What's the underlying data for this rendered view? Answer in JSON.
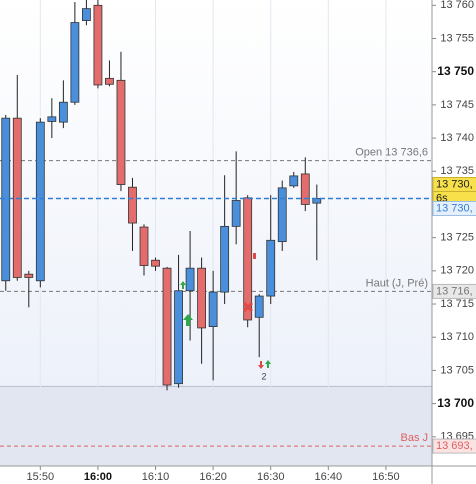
{
  "chart_data": {
    "type": "candlestick",
    "x": [
      "15:44",
      "15:46",
      "15:48",
      "15:50",
      "15:52",
      "15:54",
      "15:56",
      "15:58",
      "16:00",
      "16:02",
      "16:04",
      "16:06",
      "16:08",
      "16:10",
      "16:12",
      "16:14",
      "16:16",
      "16:18",
      "16:20",
      "16:22",
      "16:24",
      "16:26",
      "16:28",
      "16:30",
      "16:32",
      "16:34",
      "16:36",
      "16:38"
    ],
    "open": [
      13718.5,
      13743,
      13719.5,
      13718.5,
      13742.5,
      13742.4,
      13745.4,
      13757.7,
      13760,
      13749,
      13748.7,
      13732.6,
      13726.6,
      13721.6,
      13720.4,
      13703,
      13717,
      13720.4,
      13711.6,
      13716.8,
      13726.7,
      13731,
      13713,
      13716.2,
      13724.4,
      13732.8,
      13734.6,
      13730.2
    ],
    "high": [
      13743.5,
      13749.5,
      13720,
      13743,
      13746,
      13748.7,
      13760.5,
      13762,
      13761,
      13751.7,
      13753,
      13734,
      13727,
      13722,
      13720.6,
      13722.4,
      13726,
      13722,
      13720,
      13734.4,
      13738,
      13731.4,
      13716.5,
      13731.4,
      13733.6,
      13734.9,
      13737.1,
      13733
    ],
    "low": [
      13717,
      13718.5,
      13714.5,
      13717.5,
      13740,
      13741.5,
      13745,
      13757,
      13747.5,
      13747.8,
      13732,
      13723,
      13719.3,
      13720,
      13702,
      13702.4,
      13709.5,
      13706,
      13703.5,
      13715,
      13724,
      13711.5,
      13707,
      13715,
      13723,
      13732.5,
      13729,
      13721.6
    ],
    "close": [
      13743,
      13719,
      13719,
      13742.4,
      13743.2,
      13745.4,
      13757.4,
      13759.5,
      13748,
      13748.1,
      13733,
      13727.2,
      13720.8,
      13720.7,
      13702.8,
      13717,
      13720.4,
      13711.4,
      13716.8,
      13726.7,
      13730.6,
      13712.6,
      13716.2,
      13724.6,
      13732.5,
      13734.3,
      13730,
      13730.9
    ],
    "up_color": "#4a8fdc",
    "down_color": "#e36d6d",
    "xlim": [
      "15:43",
      "16:58"
    ],
    "xticks": [
      {
        "value": "15:50",
        "label": "15:50"
      },
      {
        "value": "16:00",
        "label": "16:00",
        "bold": true
      },
      {
        "value": "16:10",
        "label": "16:10"
      },
      {
        "value": "16:20",
        "label": "16:20"
      },
      {
        "value": "16:30",
        "label": "16:30"
      },
      {
        "value": "16:40",
        "label": "16:40"
      },
      {
        "value": "16:50",
        "label": "16:50"
      }
    ],
    "ylim": [
      13690.6,
      13760.8
    ],
    "yticks": [
      {
        "value": 13760,
        "label": "13 760"
      },
      {
        "value": 13755,
        "label": "13 755"
      },
      {
        "value": 13750,
        "label": "13 750",
        "bold": true
      },
      {
        "value": 13745,
        "label": "13 745"
      },
      {
        "value": 13740,
        "label": "13 740"
      },
      {
        "value": 13735,
        "label": "13 735"
      },
      {
        "value": 13730,
        "label": "13 730"
      },
      {
        "value": 13725,
        "label": "13 725"
      },
      {
        "value": 13720,
        "label": "13 720"
      },
      {
        "value": 13715,
        "label": "13 715"
      },
      {
        "value": 13710,
        "label": "13 710"
      },
      {
        "value": 13705,
        "label": "13 705"
      },
      {
        "value": 13700,
        "label": "13 700",
        "bold": true
      },
      {
        "value": 13695,
        "label": "13 695"
      }
    ],
    "shaded_below": 13702.6,
    "levels": [
      {
        "label": "Open 13 736,6",
        "value": 13736.6,
        "color": "#777777"
      },
      {
        "label": "Haut (J, Pré)",
        "value": 13716.9,
        "tag": "13 716,",
        "color": "#777777"
      },
      {
        "label": "Bas J",
        "value": 13693.6,
        "tag": "13 693,",
        "color": "#e06060"
      }
    ],
    "current": {
      "value": 13730.9,
      "tag": "13 730,",
      "countdown": "6s",
      "tag2": "13 730,",
      "color": "#2f7fd8"
    },
    "annotations": [
      {
        "text": "2"
      }
    ]
  }
}
